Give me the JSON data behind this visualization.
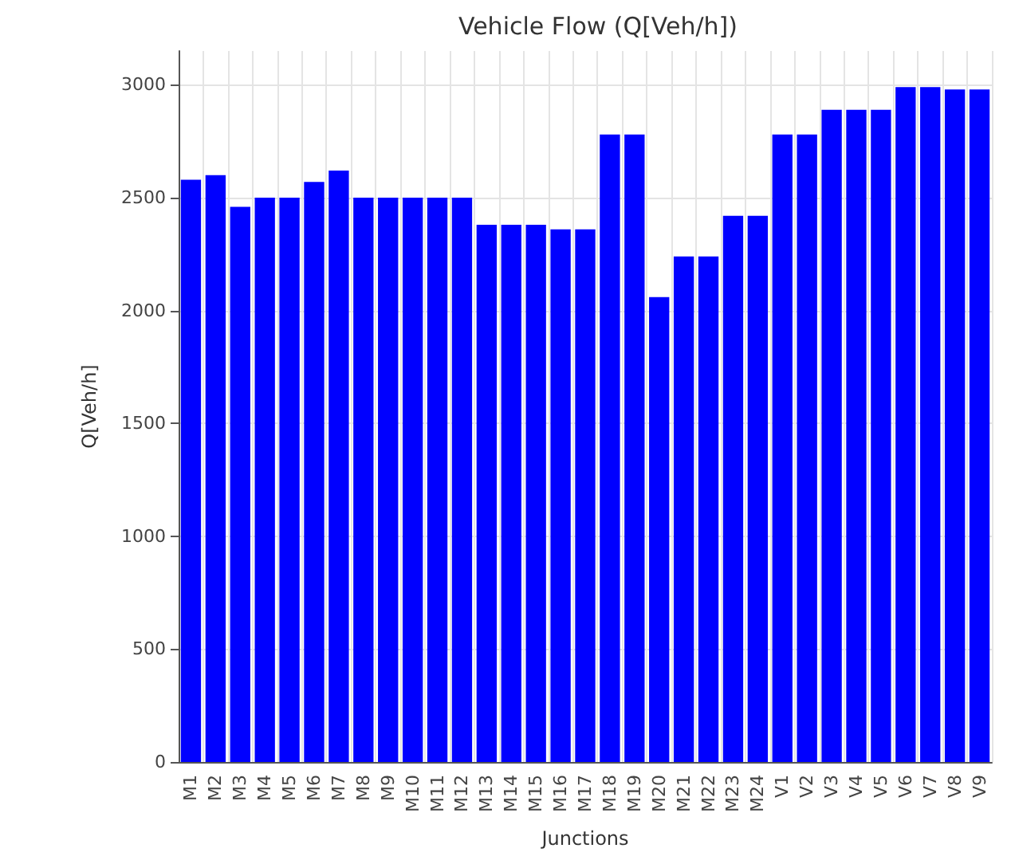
{
  "chart_data": {
    "type": "bar",
    "title": "Vehicle Flow (Q[Veh/h])",
    "xlabel": "Junctions",
    "ylabel": "Q[Veh/h]",
    "categories": [
      "M1",
      "M2",
      "M3",
      "M4",
      "M5",
      "M6",
      "M7",
      "M8",
      "M9",
      "M10",
      "M11",
      "M12",
      "M13",
      "M14",
      "M15",
      "M16",
      "M17",
      "M18",
      "M19",
      "M20",
      "M21",
      "M22",
      "M23",
      "M24",
      "V1",
      "V2",
      "V3",
      "V4",
      "V5",
      "V6",
      "V7",
      "V8",
      "V9"
    ],
    "values": [
      2580,
      2600,
      2460,
      2500,
      2500,
      2570,
      2620,
      2500,
      2500,
      2500,
      2500,
      2500,
      2380,
      2380,
      2380,
      2360,
      2360,
      2780,
      2780,
      2060,
      2240,
      2240,
      2420,
      2420,
      2780,
      2780,
      2890,
      2890,
      2890,
      2990,
      2990,
      2980,
      2980
    ],
    "color": "#0000ff",
    "ylim": [
      0,
      3150
    ],
    "yticks": [
      0,
      500,
      1000,
      1500,
      2000,
      2500,
      3000
    ],
    "grid": true
  }
}
